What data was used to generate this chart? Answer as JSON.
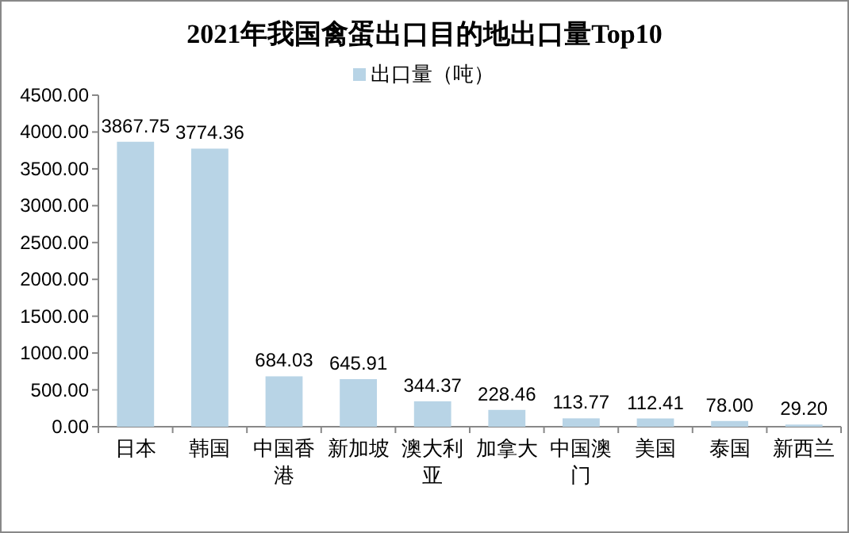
{
  "chart_data": {
    "type": "bar",
    "title": "2021年我国禽蛋出口目的地出口量Top10",
    "categories": [
      "日本",
      "韩国",
      "中国香港",
      "新加坡",
      "澳大利亚",
      "加拿大",
      "中国澳门",
      "美国",
      "泰国",
      "新西兰"
    ],
    "series": [
      {
        "name": "出口量（吨）",
        "color": "#b8d4e6",
        "values": [
          3867.75,
          3774.36,
          684.03,
          645.91,
          344.37,
          228.46,
          113.77,
          112.41,
          78.0,
          29.2
        ],
        "value_labels": [
          "3867.75",
          "3774.36",
          "684.03",
          "645.91",
          "344.37",
          "228.46",
          "113.77",
          "112.41",
          "78.00",
          "29.20"
        ]
      }
    ],
    "ylim": [
      0,
      4500
    ],
    "yticks": [
      {
        "value": 0,
        "label": "0.00"
      },
      {
        "value": 500,
        "label": "500.00"
      },
      {
        "value": 1000,
        "label": "1000.00"
      },
      {
        "value": 1500,
        "label": "1500.00"
      },
      {
        "value": 2000,
        "label": "2000.00"
      },
      {
        "value": 2500,
        "label": "2500.00"
      },
      {
        "value": 3000,
        "label": "3000.00"
      },
      {
        "value": 3500,
        "label": "3500.00"
      },
      {
        "value": 4000,
        "label": "4000.00"
      },
      {
        "value": 4500,
        "label": "4500.00"
      }
    ],
    "grid": false,
    "legend": "top"
  }
}
